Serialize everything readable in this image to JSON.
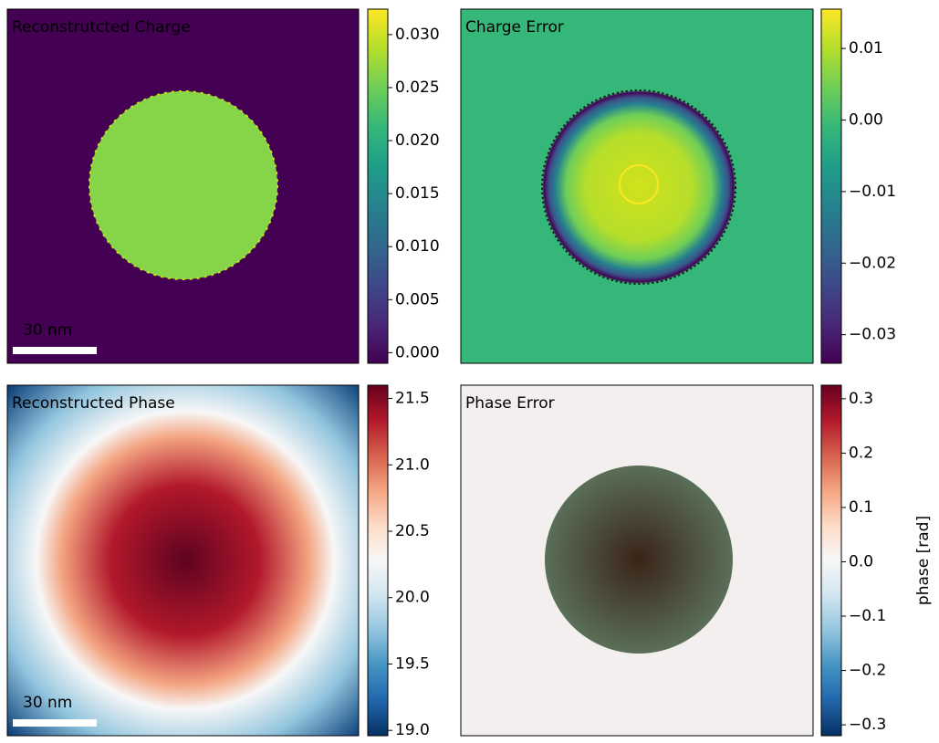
{
  "chart_data": [
    {
      "type": "image",
      "title": "Reconstrutcted Charge",
      "cmap": "viridis",
      "scalebar": "30 nm",
      "clim": [
        -0.001,
        0.0324
      ],
      "cticks": [
        {
          "value": 0.0,
          "label": "0.000"
        },
        {
          "value": 0.005,
          "label": "0.005"
        },
        {
          "value": 0.01,
          "label": "0.010"
        },
        {
          "value": 0.015,
          "label": "0.015"
        },
        {
          "value": 0.02,
          "label": "0.020"
        },
        {
          "value": 0.025,
          "label": "0.025"
        },
        {
          "value": 0.03,
          "label": "0.030"
        }
      ]
    },
    {
      "type": "image",
      "title": "Charge Error",
      "cmap": "viridis",
      "clim": [
        -0.034,
        0.0155
      ],
      "cticks": [
        {
          "value": -0.03,
          "label": "−0.03"
        },
        {
          "value": -0.02,
          "label": "−0.02"
        },
        {
          "value": -0.01,
          "label": "−0.01"
        },
        {
          "value": 0.0,
          "label": "0.00"
        },
        0.01
      ]
    },
    {
      "type": "image",
      "title": "Reconstructed Phase",
      "cmap": "RdBu_r",
      "scalebar": "30 nm",
      "clim": [
        18.96,
        21.6
      ],
      "cticks": [
        {
          "value": 19.0,
          "label": "19.0"
        },
        19.5,
        {
          "value": 20.0,
          "label": "20.0"
        },
        20.5,
        {
          "value": 21.0,
          "label": "21.0"
        },
        21.5
      ]
    },
    {
      "type": "image",
      "title": "Phase Error",
      "cmap": "RdBu_r",
      "colorbar_label": "phase [rad]",
      "clim": [
        -0.32,
        0.325
      ],
      "cticks": [
        {
          "value": -0.3,
          "label": "−0.3"
        },
        {
          "value": -0.2,
          "label": "−0.2"
        },
        {
          "value": -0.1,
          "label": "−0.1"
        },
        {
          "value": 0.0,
          "label": "0.0"
        },
        0.1,
        0.2,
        0.3
      ]
    }
  ]
}
